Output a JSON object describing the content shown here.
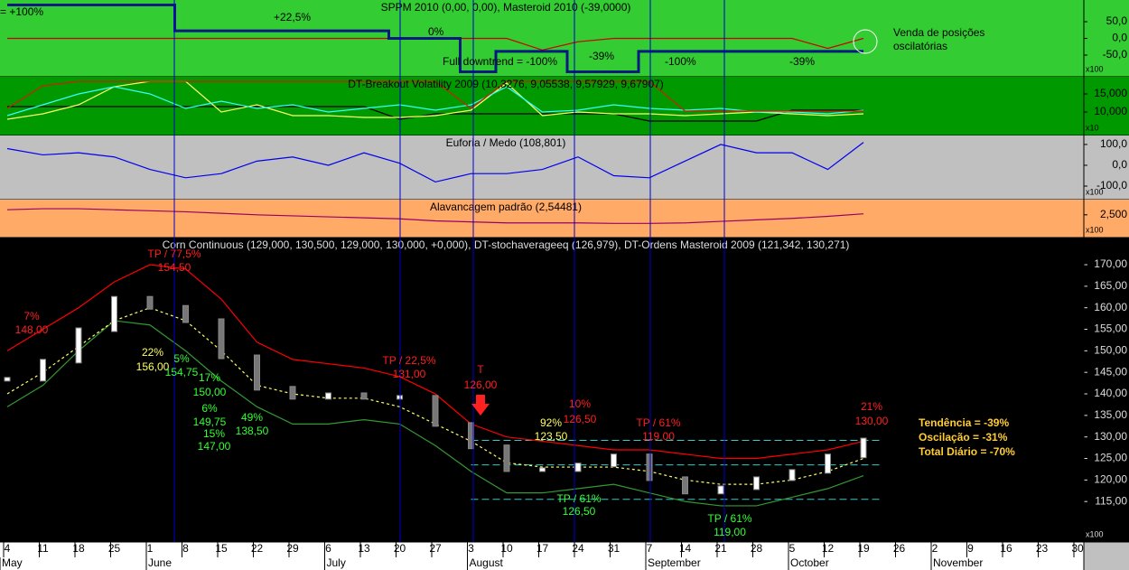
{
  "chart_data": [
    {
      "type": "line",
      "title": "SPPM 2010 (0,00, 0,00), Masteroid 2010 (-39,0000)",
      "bg": "#33cc33",
      "ylim": [
        -115,
        115
      ],
      "yticks": [
        {
          "value": 50,
          "label": "50,0"
        },
        {
          "value": 0,
          "label": "0,0"
        },
        {
          "value": -50,
          "label": "-50,0"
        }
      ],
      "y_unit": "x100",
      "annotations": [
        "= +100%",
        "+22,5%",
        "0%",
        "Full downtrend = -100%",
        "-39%",
        "-100%",
        "-39%",
        "Venda de posições",
        "oscilatórias"
      ],
      "series": [
        {
          "color": "#cc0000",
          "values": [
            0,
            0,
            0,
            0,
            0,
            0,
            0,
            0,
            0,
            0,
            0,
            0,
            0,
            0,
            0,
            -35,
            -10,
            0,
            0,
            0,
            0,
            0,
            0,
            -30,
            0,
            null,
            null,
            null,
            null,
            null,
            null
          ]
        },
        {
          "color": "#001a80",
          "step": true,
          "values": [
            100,
            100,
            100,
            100,
            100,
            22.5,
            22.5,
            22.5,
            22.5,
            22.5,
            22.5,
            0,
            0,
            -100,
            -39,
            -39,
            -100,
            -100,
            -39,
            -39,
            -39,
            -39,
            -39,
            -39,
            -39,
            null,
            null,
            null,
            null,
            null,
            null
          ]
        }
      ]
    },
    {
      "type": "line",
      "title": "DT-Breakout Volatility 2009 (10,3276, 9,05538, 9,57929, 9,67907)",
      "bg": "#009900",
      "ylim": [
        3500,
        19750
      ],
      "yticks": [
        {
          "value": 15000,
          "label": "15,000"
        },
        {
          "value": 10000,
          "label": "10,000"
        }
      ],
      "y_unit": "x10",
      "series": [
        {
          "color": "#000000",
          "values": [
            11500,
            11500,
            11500,
            11500,
            11500,
            11500,
            11500,
            11500,
            11500,
            11500,
            11500,
            8000,
            9500,
            9500,
            9500,
            9500,
            9500,
            9500,
            7500,
            7500,
            7500,
            7500,
            10500,
            10500,
            10500,
            null,
            null,
            null,
            null,
            null,
            null
          ]
        },
        {
          "color": "#ffff66",
          "values": [
            8000,
            9500,
            12000,
            17000,
            18500,
            18500,
            10000,
            12000,
            9000,
            9000,
            8500,
            8500,
            9000,
            10500,
            18000,
            9000,
            10000,
            9500,
            9500,
            9000,
            9500,
            10000,
            9500,
            9000,
            9500,
            null,
            null,
            null,
            null,
            null,
            null
          ]
        },
        {
          "color": "#33ffff",
          "values": [
            9000,
            12000,
            15000,
            17000,
            15000,
            11000,
            13000,
            11000,
            12000,
            10000,
            11000,
            12000,
            10500,
            12000,
            17000,
            10000,
            10500,
            12000,
            11000,
            10500,
            11000,
            10000,
            10000,
            9500,
            10500,
            null,
            null,
            null,
            null,
            null,
            null
          ]
        },
        {
          "color": "#cc2200",
          "values": [
            11000,
            17250,
            18500,
            18500,
            18500,
            18500,
            18500,
            18500,
            18500,
            18500,
            18500,
            18500,
            18500,
            11000,
            18500,
            18500,
            18500,
            18500,
            18500,
            10250,
            10250,
            10250,
            10250,
            10250,
            10250,
            null,
            null,
            null,
            null,
            null,
            null
          ]
        }
      ]
    },
    {
      "type": "line",
      "title": "Euforia / Medo (108,801)",
      "bg": "#c0c0c0",
      "ylim": [
        -165,
        143
      ],
      "yticks": [
        {
          "value": 100,
          "label": "100,0"
        },
        {
          "value": 0,
          "label": "0,0"
        },
        {
          "value": -100,
          "label": "-100,0"
        }
      ],
      "y_unit": "x100",
      "series": [
        {
          "color": "#0000ee",
          "values": [
            80,
            50,
            60,
            40,
            -20,
            -60,
            -40,
            20,
            40,
            0,
            60,
            10,
            -80,
            -40,
            -40,
            -20,
            40,
            -50,
            -60,
            20,
            100,
            60,
            60,
            -20,
            110,
            null,
            null,
            null,
            null,
            null,
            null
          ]
        }
      ]
    },
    {
      "type": "line",
      "title": "Alavancagem padrão (2,54481)",
      "bg": "#ffaa66",
      "ylim": [
        2050,
        2800
      ],
      "yticks": [
        {
          "value": 2500,
          "label": "2,500"
        }
      ],
      "y_unit": "x100",
      "series": [
        {
          "color": "#990066",
          "values": [
            2600,
            2620,
            2620,
            2600,
            2580,
            2560,
            2530,
            2500,
            2480,
            2460,
            2440,
            2420,
            2380,
            2360,
            2340,
            2340,
            2340,
            2330,
            2330,
            2340,
            2370,
            2400,
            2430,
            2470,
            2520,
            null,
            null,
            null,
            null,
            null,
            null
          ]
        }
      ]
    },
    {
      "type": "candle",
      "title": "Corn Continuous (129,000, 130,500, 129,000, 130,000, +0,000), DT-stochaverageeq (126,979), DT-Ordens Masteroid 2009 (121,342, 130,271)",
      "bg": "#000000",
      "ylim": [
        105.6,
        176.3
      ],
      "yticks": [
        {
          "value": 170,
          "label": "170,00"
        },
        {
          "value": 165,
          "label": "165,00"
        },
        {
          "value": 160,
          "label": "160,00"
        },
        {
          "value": 155,
          "label": "155,00"
        },
        {
          "value": 150,
          "label": "150,00"
        },
        {
          "value": 145,
          "label": "145,00"
        },
        {
          "value": 140,
          "label": "140,00"
        },
        {
          "value": 135,
          "label": "135,00"
        },
        {
          "value": 130,
          "label": "130,00"
        },
        {
          "value": 125,
          "label": "125,00"
        },
        {
          "value": 120,
          "label": "120,00"
        },
        {
          "value": 115,
          "label": "115,00"
        }
      ],
      "y_unit": "x100",
      "categories": [
        "4",
        "11",
        "18",
        "25",
        "1",
        "8",
        "15",
        "22",
        "29",
        "6",
        "13",
        "20",
        "27",
        "3",
        "10",
        "17",
        "24",
        "31",
        "7",
        "14",
        "21",
        "28",
        "5",
        "12",
        "19",
        "26",
        "2",
        "9",
        "16",
        "23",
        "30"
      ],
      "months": [
        "May",
        null,
        null,
        null,
        "June",
        null,
        null,
        null,
        null,
        "July",
        null,
        null,
        null,
        "August",
        null,
        null,
        null,
        null,
        "September",
        null,
        null,
        null,
        "October",
        null,
        null,
        null,
        "November",
        null,
        null,
        null,
        null
      ],
      "levels": [
        129.2,
        123.5,
        115.5
      ],
      "level_color": "#33cccc",
      "close": [
        143.4,
        147.6,
        154.9,
        162.2,
        160.1,
        157,
        148.6,
        141.3,
        139.2,
        139.8,
        139.2,
        139.2,
        132.9,
        127.7,
        122.4,
        122.4,
        123.5,
        125.6,
        120.3,
        117.2,
        118.2,
        120.3,
        122,
        125.6,
        129.3,
        null,
        null,
        null,
        null,
        null,
        null
      ],
      "series": [
        {
          "color": "#ff0000",
          "values": [
            150,
            155,
            160,
            166,
            170,
            169,
            162,
            152,
            148,
            147,
            146,
            144,
            140,
            133,
            130,
            129,
            128,
            127,
            127,
            126,
            125,
            125,
            126,
            127,
            129,
            null,
            null,
            null,
            null,
            null,
            null
          ]
        },
        {
          "color": "#339933",
          "values": [
            137,
            142,
            150,
            157,
            156,
            150,
            143,
            137,
            133,
            133,
            134,
            133,
            128,
            122,
            117,
            117,
            118,
            119,
            117,
            115,
            114,
            114,
            116,
            118,
            121,
            null,
            null,
            null,
            null,
            null,
            null
          ]
        },
        {
          "color": "#ffff66",
          "dashed": true,
          "values": [
            140,
            145,
            151,
            157,
            160,
            157,
            150,
            142,
            140,
            139,
            139,
            137,
            133,
            129,
            124,
            123,
            123,
            123,
            122,
            120,
            119,
            119,
            120,
            122,
            125,
            null,
            null,
            null,
            null,
            null,
            null
          ]
        }
      ],
      "annotations": [
        "TP / 77,5%",
        "154,50",
        "7%",
        "148,00",
        "22%",
        "156,00",
        "5%",
        "154,75",
        "17%",
        "150,00",
        "6%",
        "149,75",
        "15%",
        "147,00",
        "49%",
        "138,50",
        "TP / 22,5%",
        "131,00",
        "T",
        "126,00",
        "92%",
        "123,50",
        "10%",
        "126,50",
        "TP / 61%",
        "119,00",
        "TP / 61%",
        "126,50",
        "TP / 61%",
        "119,00",
        "21%",
        "130,00",
        "Tendência = -39%",
        "Oscilação = -31%",
        "Total Diário = -70%"
      ]
    }
  ]
}
